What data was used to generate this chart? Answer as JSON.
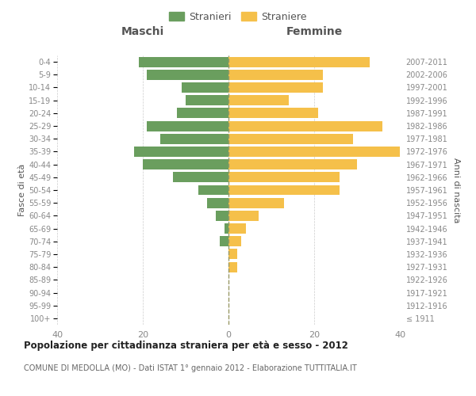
{
  "age_groups": [
    "100+",
    "95-99",
    "90-94",
    "85-89",
    "80-84",
    "75-79",
    "70-74",
    "65-69",
    "60-64",
    "55-59",
    "50-54",
    "45-49",
    "40-44",
    "35-39",
    "30-34",
    "25-29",
    "20-24",
    "15-19",
    "10-14",
    "5-9",
    "0-4"
  ],
  "birth_years": [
    "≤ 1911",
    "1912-1916",
    "1917-1921",
    "1922-1926",
    "1927-1931",
    "1932-1936",
    "1937-1941",
    "1942-1946",
    "1947-1951",
    "1952-1956",
    "1957-1961",
    "1962-1966",
    "1967-1971",
    "1972-1976",
    "1977-1981",
    "1982-1986",
    "1987-1991",
    "1992-1996",
    "1997-2001",
    "2002-2006",
    "2007-2011"
  ],
  "males": [
    0,
    0,
    0,
    0,
    0,
    0,
    2,
    1,
    3,
    5,
    7,
    13,
    20,
    22,
    16,
    19,
    12,
    10,
    11,
    19,
    21
  ],
  "females": [
    0,
    0,
    0,
    0,
    2,
    2,
    3,
    4,
    7,
    13,
    26,
    26,
    30,
    40,
    29,
    36,
    21,
    14,
    22,
    22,
    33
  ],
  "male_color": "#6a9e5e",
  "female_color": "#f5c04a",
  "background_color": "#ffffff",
  "grid_color": "#cccccc",
  "bar_height": 0.8,
  "xlim": 40,
  "title": "Popolazione per cittadinanza straniera per età e sesso - 2012",
  "subtitle": "COMUNE DI MEDOLLA (MO) - Dati ISTAT 1° gennaio 2012 - Elaborazione TUTTITALIA.IT",
  "xlabel_left": "Maschi",
  "xlabel_right": "Femmine",
  "ylabel_left": "Fasce di età",
  "ylabel_right": "Anni di nascita",
  "legend_male": "Stranieri",
  "legend_female": "Straniere",
  "tick_color": "#888888",
  "label_color": "#555555",
  "title_color": "#222222",
  "subtitle_color": "#666666"
}
